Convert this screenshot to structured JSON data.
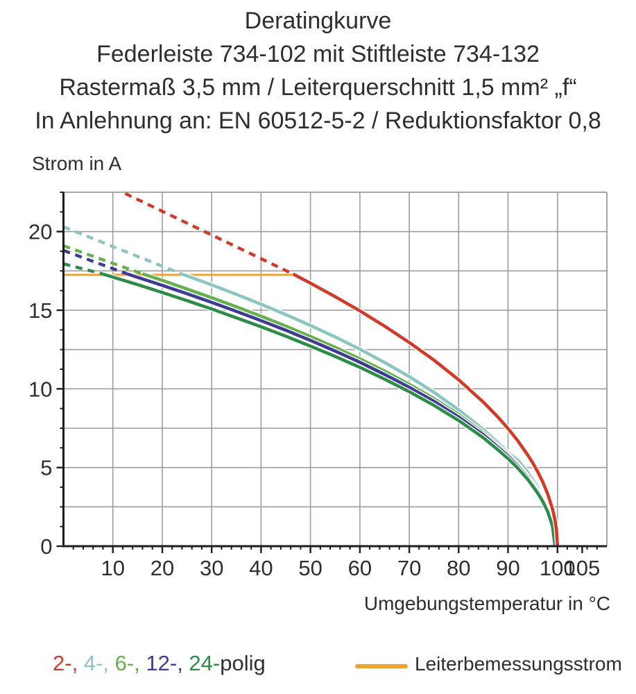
{
  "header": {
    "title": "Deratingkurve",
    "subtitle1": "Federleiste 734-102 mit Stiftleiste 734-132",
    "subtitle2": "Rastermaß 3,5 mm / Leiterquerschnitt 1,5 mm² „f“",
    "subtitle3": "In Anlehnung an: EN 60512-5-2 / Reduktionsfaktor 0,8"
  },
  "chart_data": {
    "type": "line",
    "title": "Deratingkurve",
    "xlabel": "Umgebungstemperatur in °C",
    "ylabel": "Strom in A",
    "xlim": [
      0,
      110
    ],
    "ylim": [
      0,
      22.5
    ],
    "grid": true,
    "x_gridlines": [
      10,
      20,
      30,
      40,
      50,
      60,
      70,
      80,
      90,
      100
    ],
    "y_gridlines": [
      2.5,
      5,
      7.5,
      10,
      12.5,
      15,
      17.5,
      20
    ],
    "x_major_ticks": [
      10,
      20,
      30,
      40,
      50,
      60,
      70,
      80,
      90,
      100,
      105
    ],
    "x_minor_step": 2,
    "x_minor_max": 108,
    "y_major_ticks": [
      0,
      5,
      10,
      15,
      20
    ],
    "y_minor_step": 1.25,
    "y_minor_max": 22.5,
    "colors": {
      "grid": "#9c9c9c",
      "axis": "#1c1c1c",
      "text": "#2e2e2e"
    },
    "rated_current_line": {
      "label": "Leiterbemessungsstrom",
      "color": "#f0a232",
      "y": 17.25,
      "x_start": 0,
      "x_end": 46.5
    },
    "series": [
      {
        "name": "4-polig",
        "color": "#8ac5c1",
        "dashed_points": [
          [
            0,
            20.3
          ],
          [
            24,
            17.3
          ]
        ],
        "solid_points": [
          [
            24,
            17.3
          ],
          [
            30,
            16.61
          ],
          [
            35,
            16.01
          ],
          [
            40,
            15.38
          ],
          [
            45,
            14.72
          ],
          [
            50,
            14.03
          ],
          [
            55,
            13.3
          ],
          [
            60,
            12.52
          ],
          [
            65,
            11.68
          ],
          [
            70,
            10.78
          ],
          [
            75,
            9.78
          ],
          [
            80,
            8.67
          ],
          [
            85,
            7.41
          ],
          [
            88,
            6.56
          ],
          [
            90,
            5.93
          ],
          [
            92,
            5.46
          ],
          [
            94,
            4.68
          ],
          [
            96,
            3.73
          ],
          [
            97,
            2.99
          ],
          [
            98,
            2.35
          ],
          [
            99,
            1.41
          ],
          [
            99.5,
            0
          ]
        ]
      },
      {
        "name": "6-polig",
        "color": "#67b04e",
        "dashed_points": [
          [
            0,
            19.1
          ],
          [
            16,
            17.31
          ]
        ],
        "solid_points": [
          [
            16,
            17.31
          ],
          [
            20,
            16.9
          ],
          [
            25,
            16.35
          ],
          [
            30,
            15.8
          ],
          [
            35,
            15.22
          ],
          [
            40,
            14.62
          ],
          [
            45,
            13.99
          ],
          [
            50,
            13.33
          ],
          [
            55,
            12.64
          ],
          [
            60,
            11.91
          ],
          [
            65,
            11.13
          ],
          [
            70,
            10.29
          ],
          [
            75,
            9.38
          ],
          [
            80,
            8.37
          ],
          [
            85,
            7.21
          ],
          [
            88,
            6.39
          ],
          [
            90,
            5.84
          ],
          [
            92,
            5.19
          ],
          [
            94,
            4.44
          ],
          [
            96,
            3.55
          ],
          [
            97,
            3.0
          ],
          [
            98,
            2.32
          ],
          [
            99,
            1.34
          ],
          [
            99.5,
            0
          ]
        ]
      },
      {
        "name": "12-polig",
        "color": "#3e3c90",
        "dashed_points": [
          [
            0,
            18.8
          ],
          [
            13,
            17.3
          ]
        ],
        "solid_points": [
          [
            13,
            17.3
          ],
          [
            20,
            16.58
          ],
          [
            25,
            16.05
          ],
          [
            30,
            15.5
          ],
          [
            35,
            14.93
          ],
          [
            40,
            14.34
          ],
          [
            45,
            13.73
          ],
          [
            50,
            13.08
          ],
          [
            55,
            12.4
          ],
          [
            60,
            11.69
          ],
          [
            65,
            10.92
          ],
          [
            70,
            10.1
          ],
          [
            75,
            9.21
          ],
          [
            80,
            8.21
          ],
          [
            85,
            7.08
          ],
          [
            88,
            6.28
          ],
          [
            90,
            5.73
          ],
          [
            92,
            5.09
          ],
          [
            94,
            4.36
          ],
          [
            96,
            3.48
          ],
          [
            97,
            2.94
          ],
          [
            98,
            2.28
          ],
          [
            99,
            1.32
          ],
          [
            99.5,
            0
          ]
        ]
      },
      {
        "name": "24-polig",
        "color": "#2e8b49",
        "dashed_points": [
          [
            0,
            17.95
          ],
          [
            8,
            17.3
          ]
        ],
        "solid_points": [
          [
            8,
            17.3
          ],
          [
            15,
            16.63
          ],
          [
            20,
            16.13
          ],
          [
            25,
            15.61
          ],
          [
            30,
            15.08
          ],
          [
            35,
            14.52
          ],
          [
            40,
            13.95
          ],
          [
            45,
            13.35
          ],
          [
            50,
            12.72
          ],
          [
            55,
            12.06
          ],
          [
            60,
            11.37
          ],
          [
            65,
            10.62
          ],
          [
            70,
            9.82
          ],
          [
            75,
            8.95
          ],
          [
            80,
            7.99
          ],
          [
            85,
            6.89
          ],
          [
            88,
            6.11
          ],
          [
            90,
            5.57
          ],
          [
            92,
            4.95
          ],
          [
            94,
            4.24
          ],
          [
            96,
            3.38
          ],
          [
            97,
            2.86
          ],
          [
            98,
            2.22
          ],
          [
            99,
            1.28
          ],
          [
            99.5,
            0
          ]
        ]
      },
      {
        "name": "2-polig",
        "color": "#d03a28",
        "dashed_points": [
          [
            12.5,
            22.42
          ],
          [
            46.5,
            17.3
          ]
        ],
        "solid_points": [
          [
            46.5,
            17.3
          ],
          [
            50,
            16.72
          ],
          [
            55,
            15.86
          ],
          [
            60,
            14.96
          ],
          [
            65,
            13.99
          ],
          [
            70,
            12.95
          ],
          [
            75,
            11.83
          ],
          [
            80,
            10.58
          ],
          [
            85,
            9.16
          ],
          [
            88,
            8.19
          ],
          [
            90,
            7.48
          ],
          [
            92,
            6.69
          ],
          [
            94,
            5.79
          ],
          [
            95,
            5.29
          ],
          [
            96,
            4.73
          ],
          [
            97,
            4.1
          ],
          [
            98,
            3.34
          ],
          [
            99,
            2.37
          ],
          [
            99.5,
            1.67
          ],
          [
            99.8,
            1.06
          ],
          [
            100,
            0
          ]
        ]
      }
    ],
    "legend": {
      "poles_segments": [
        {
          "text": "2-,",
          "color": "#d03a28"
        },
        {
          "text": " 4-,",
          "color": "#8ac5c1"
        },
        {
          "text": " 6-,",
          "color": "#67b04e"
        },
        {
          "text": " 12-,",
          "color": "#3e3c90"
        },
        {
          "text": " 24-",
          "color": "#2e8b49"
        },
        {
          "text": "polig",
          "color": "#2e2e35"
        }
      ],
      "rated_label": "Leiterbemessungsstrom"
    }
  }
}
